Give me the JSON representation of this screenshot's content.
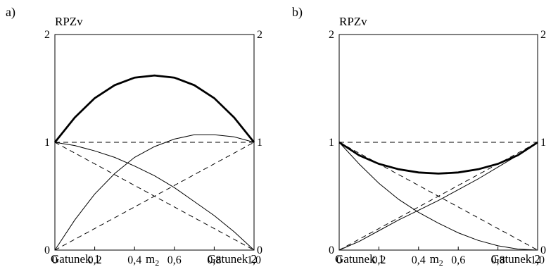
{
  "chart_data": [
    {
      "type": "line",
      "panel_label": "a)",
      "title": "",
      "ylabel": "RPZv",
      "xlabel": "m",
      "xlabel_subscript": "2",
      "x_left_label": "Gatunek 1",
      "x_right_label": "Gatunek 2",
      "xlim": [
        0,
        1
      ],
      "ylim": [
        0,
        2
      ],
      "x_ticks": [
        "0",
        "0,2",
        "0,4",
        "0,6",
        "0,8",
        "1,0"
      ],
      "y_ticks_left": [
        "0",
        "1",
        "2"
      ],
      "y_ticks_right": [
        "0",
        "1",
        "2"
      ],
      "series": [
        {
          "style": "bold",
          "x": [
            0,
            0.1,
            0.2,
            0.3,
            0.4,
            0.5,
            0.6,
            0.7,
            0.8,
            0.9,
            1.0
          ],
          "y": [
            1.0,
            1.23,
            1.41,
            1.53,
            1.6,
            1.62,
            1.6,
            1.53,
            1.41,
            1.23,
            1.0
          ]
        },
        {
          "style": "solid",
          "x": [
            0,
            0.1,
            0.2,
            0.3,
            0.4,
            0.5,
            0.6,
            0.7,
            0.8,
            0.9,
            1.0
          ],
          "y": [
            1.0,
            0.97,
            0.92,
            0.86,
            0.78,
            0.69,
            0.58,
            0.45,
            0.32,
            0.17,
            0.0
          ]
        },
        {
          "style": "solid",
          "x": [
            0,
            0.1,
            0.2,
            0.3,
            0.4,
            0.5,
            0.6,
            0.7,
            0.8,
            0.9,
            1.0
          ],
          "y": [
            0.0,
            0.28,
            0.52,
            0.71,
            0.86,
            0.96,
            1.03,
            1.07,
            1.07,
            1.05,
            1.0
          ]
        },
        {
          "style": "dashed",
          "x": [
            0,
            1
          ],
          "y": [
            1,
            1
          ]
        },
        {
          "style": "dashed",
          "x": [
            0,
            1
          ],
          "y": [
            1,
            0
          ]
        },
        {
          "style": "dashed",
          "x": [
            0,
            1
          ],
          "y": [
            0,
            1
          ]
        }
      ]
    },
    {
      "type": "line",
      "panel_label": "b)",
      "title": "",
      "ylabel": "RPZv",
      "xlabel": "m",
      "xlabel_subscript": "2",
      "x_left_label": "Gatunek 1",
      "x_right_label": "Gatunek 2",
      "xlim": [
        0,
        1
      ],
      "ylim": [
        0,
        2
      ],
      "x_ticks": [
        "0",
        "0,2",
        "0,4",
        "0,6",
        "0,8",
        "1,0"
      ],
      "y_ticks_left": [
        "0",
        "1",
        "2"
      ],
      "y_ticks_right": [
        "0",
        "1",
        "2"
      ],
      "series": [
        {
          "style": "bold",
          "x": [
            0,
            0.1,
            0.2,
            0.3,
            0.4,
            0.5,
            0.6,
            0.7,
            0.8,
            0.9,
            1.0
          ],
          "y": [
            1.0,
            0.88,
            0.8,
            0.75,
            0.72,
            0.71,
            0.72,
            0.75,
            0.8,
            0.88,
            1.0
          ]
        },
        {
          "style": "solid",
          "x": [
            0,
            0.1,
            0.2,
            0.3,
            0.4,
            0.5,
            0.6,
            0.7,
            0.8,
            0.9,
            1.0
          ],
          "y": [
            1.0,
            0.8,
            0.62,
            0.47,
            0.35,
            0.25,
            0.16,
            0.09,
            0.04,
            0.01,
            0.0
          ]
        },
        {
          "style": "solid",
          "x": [
            0,
            0.1,
            0.2,
            0.3,
            0.4,
            0.5,
            0.6,
            0.7,
            0.8,
            0.9,
            1.0
          ],
          "y": [
            0.0,
            0.08,
            0.18,
            0.28,
            0.37,
            0.46,
            0.56,
            0.66,
            0.77,
            0.88,
            1.0
          ]
        },
        {
          "style": "dashed",
          "x": [
            0,
            1
          ],
          "y": [
            1,
            1
          ]
        },
        {
          "style": "dashed",
          "x": [
            0,
            1
          ],
          "y": [
            1,
            0
          ]
        },
        {
          "style": "dashed",
          "x": [
            0,
            1
          ],
          "y": [
            0,
            1
          ]
        }
      ]
    }
  ]
}
